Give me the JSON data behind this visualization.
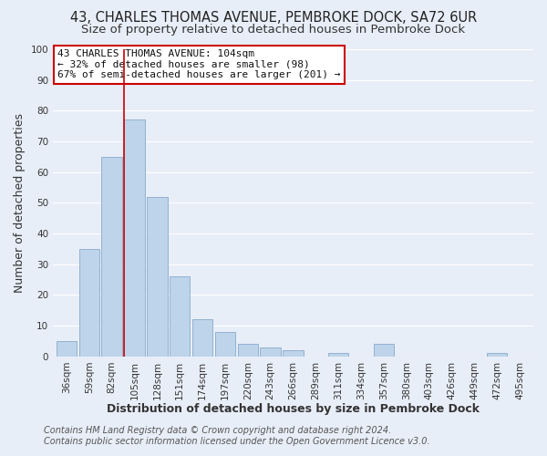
{
  "title": "43, CHARLES THOMAS AVENUE, PEMBROKE DOCK, SA72 6UR",
  "subtitle": "Size of property relative to detached houses in Pembroke Dock",
  "xlabel": "Distribution of detached houses by size in Pembroke Dock",
  "ylabel": "Number of detached properties",
  "bar_labels": [
    "36sqm",
    "59sqm",
    "82sqm",
    "105sqm",
    "128sqm",
    "151sqm",
    "174sqm",
    "197sqm",
    "220sqm",
    "243sqm",
    "266sqm",
    "289sqm",
    "311sqm",
    "334sqm",
    "357sqm",
    "380sqm",
    "403sqm",
    "426sqm",
    "449sqm",
    "472sqm",
    "495sqm"
  ],
  "bar_values": [
    5,
    35,
    65,
    77,
    52,
    26,
    12,
    8,
    4,
    3,
    2,
    0,
    1,
    0,
    4,
    0,
    0,
    0,
    0,
    1,
    0
  ],
  "bar_color": "#bdd4ea",
  "bar_edge_color": "#88aacc",
  "vline_index": 3,
  "vline_color": "#cc0000",
  "ylim": [
    0,
    100
  ],
  "yticks": [
    0,
    10,
    20,
    30,
    40,
    50,
    60,
    70,
    80,
    90,
    100
  ],
  "annotation_title": "43 CHARLES THOMAS AVENUE: 104sqm",
  "annotation_line1": "← 32% of detached houses are smaller (98)",
  "annotation_line2": "67% of semi-detached houses are larger (201) →",
  "annotation_box_color": "#cc0000",
  "footer1": "Contains HM Land Registry data © Crown copyright and database right 2024.",
  "footer2": "Contains public sector information licensed under the Open Government Licence v3.0.",
  "bg_color": "#e8eef8",
  "plot_bg_color": "#e8eef8",
  "grid_color": "#ffffff",
  "title_fontsize": 10.5,
  "subtitle_fontsize": 9.5,
  "xlabel_fontsize": 9,
  "ylabel_fontsize": 9,
  "tick_fontsize": 7.5,
  "annotation_fontsize": 8,
  "footer_fontsize": 7
}
